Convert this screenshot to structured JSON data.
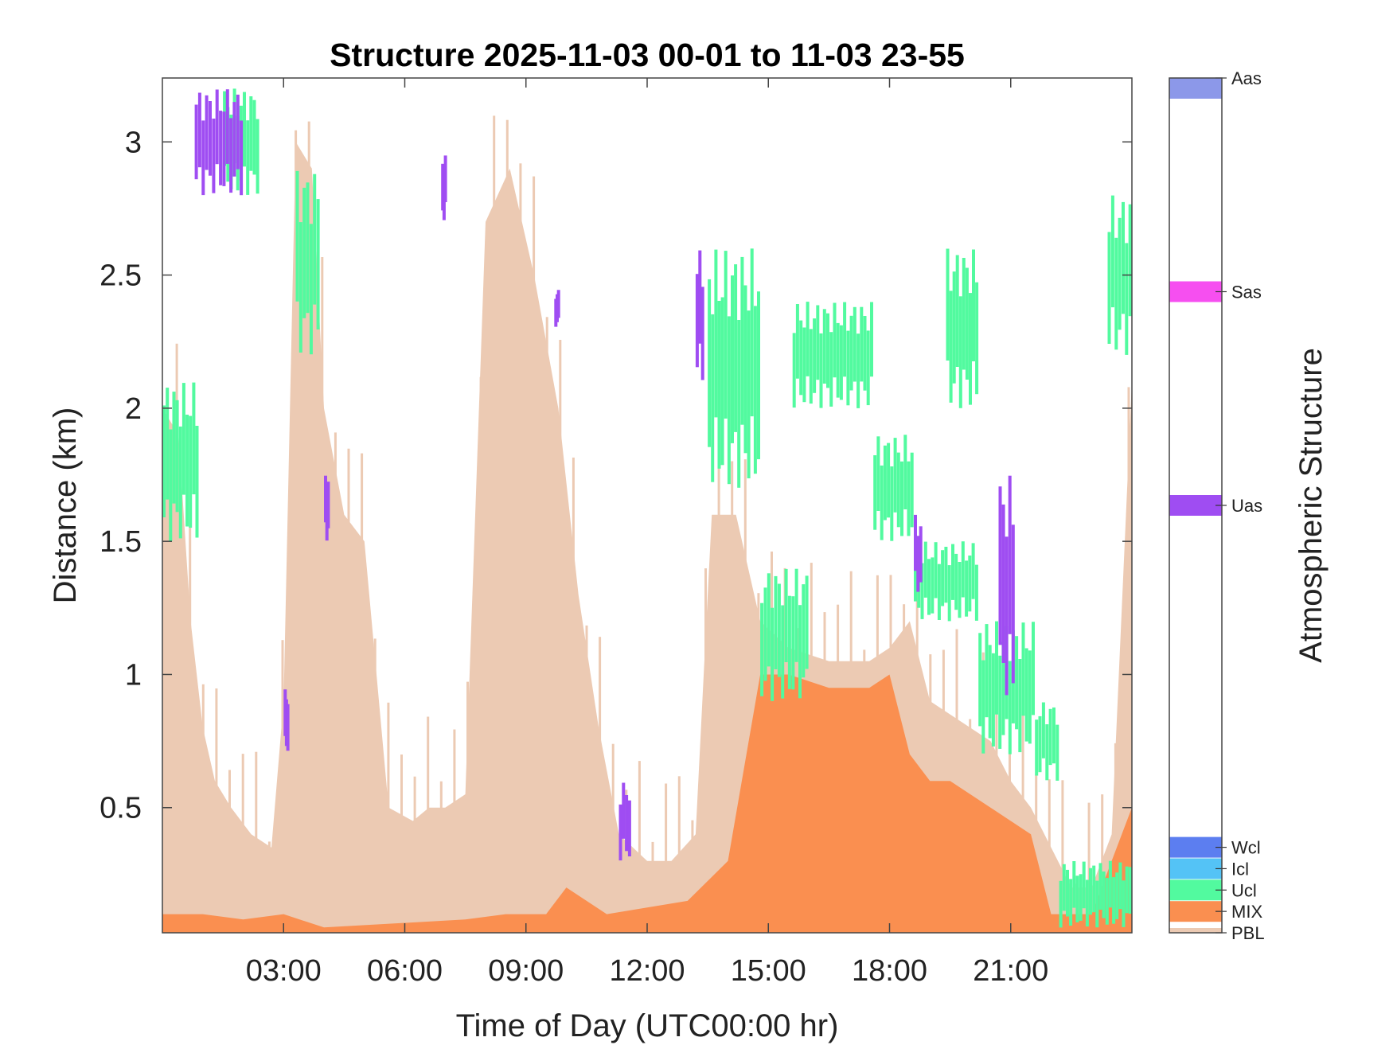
{
  "chart_data": {
    "type": "heatmap",
    "title": "Structure 2025-11-03 00-01 to 11-03 23-55",
    "xlabel": "Time of Day (UTC00:00 hr)",
    "ylabel": "Distance (km)",
    "xlim_hours": [
      0,
      24
    ],
    "ylim_km": [
      0.03,
      3.24
    ],
    "x_ticks": [
      {
        "hour": 3,
        "label": "03:00"
      },
      {
        "hour": 6,
        "label": "06:00"
      },
      {
        "hour": 9,
        "label": "09:00"
      },
      {
        "hour": 12,
        "label": "12:00"
      },
      {
        "hour": 15,
        "label": "15:00"
      },
      {
        "hour": 18,
        "label": "18:00"
      },
      {
        "hour": 21,
        "label": "21:00"
      }
    ],
    "y_ticks": [
      {
        "km": 0.5,
        "label": "0.5"
      },
      {
        "km": 1,
        "label": "1"
      },
      {
        "km": 1.5,
        "label": "1.5"
      },
      {
        "km": 2,
        "label": "2"
      },
      {
        "km": 2.5,
        "label": "2.5"
      },
      {
        "km": 3,
        "label": "3"
      }
    ],
    "colorbar": {
      "label": "Atmospheric Structure",
      "classes": [
        {
          "code": "PBL",
          "color": "#eccab3",
          "pos": 0.0
        },
        {
          "code": "MIX",
          "color": "#fa8f50",
          "pos": 0.025
        },
        {
          "code": "Ucl",
          "color": "#52fa9f",
          "pos": 0.05
        },
        {
          "code": "Icl",
          "color": "#54c3f6",
          "pos": 0.075
        },
        {
          "code": "Wcl",
          "color": "#5c7ef0",
          "pos": 0.1
        },
        {
          "code": "Uas",
          "color": "#9f4df2",
          "pos": 0.5
        },
        {
          "code": "Sas",
          "color": "#f64ff0",
          "pos": 0.75
        },
        {
          "code": "Aas",
          "color": "#8c98e9",
          "pos": 1.0
        }
      ]
    },
    "pbl_height_profile_km": [
      [
        0.0,
        2.0
      ],
      [
        0.4,
        1.9
      ],
      [
        0.7,
        1.2
      ],
      [
        1.0,
        0.8
      ],
      [
        1.3,
        0.6
      ],
      [
        1.7,
        0.5
      ],
      [
        2.2,
        0.4
      ],
      [
        2.7,
        0.35
      ],
      [
        3.0,
        0.9
      ],
      [
        3.3,
        3.0
      ],
      [
        3.7,
        2.9
      ],
      [
        4.0,
        2.0
      ],
      [
        4.5,
        1.6
      ],
      [
        5.0,
        1.5
      ],
      [
        5.6,
        0.5
      ],
      [
        6.2,
        0.45
      ],
      [
        6.6,
        0.5
      ],
      [
        7.0,
        0.5
      ],
      [
        7.5,
        0.55
      ],
      [
        8.0,
        2.7
      ],
      [
        8.6,
        2.9
      ],
      [
        9.2,
        2.5
      ],
      [
        9.8,
        2.0
      ],
      [
        10.3,
        1.3
      ],
      [
        10.8,
        0.8
      ],
      [
        11.3,
        0.4
      ],
      [
        12.0,
        0.3
      ],
      [
        12.6,
        0.3
      ],
      [
        13.2,
        0.4
      ],
      [
        13.6,
        1.6
      ],
      [
        14.2,
        1.6
      ],
      [
        14.8,
        1.2
      ],
      [
        15.5,
        1.1
      ],
      [
        16.5,
        1.05
      ],
      [
        17.5,
        1.05
      ],
      [
        18.0,
        1.1
      ],
      [
        18.5,
        1.2
      ],
      [
        19.0,
        0.9
      ],
      [
        19.5,
        0.85
      ],
      [
        20.0,
        0.8
      ],
      [
        20.5,
        0.75
      ],
      [
        21.0,
        0.6
      ],
      [
        21.5,
        0.5
      ],
      [
        22.0,
        0.35
      ],
      [
        22.5,
        0.2
      ],
      [
        23.0,
        0.2
      ],
      [
        23.5,
        0.4
      ],
      [
        24.0,
        2.1
      ]
    ],
    "mix_height_profile_km": [
      [
        0.0,
        0.1
      ],
      [
        1.0,
        0.1
      ],
      [
        2.0,
        0.08
      ],
      [
        3.0,
        0.1
      ],
      [
        4.0,
        0.05
      ],
      [
        7.5,
        0.08
      ],
      [
        8.5,
        0.1
      ],
      [
        9.5,
        0.1
      ],
      [
        10.0,
        0.2
      ],
      [
        10.5,
        0.15
      ],
      [
        11.0,
        0.1
      ],
      [
        13.0,
        0.15
      ],
      [
        14.0,
        0.3
      ],
      [
        14.8,
        1.0
      ],
      [
        15.5,
        1.0
      ],
      [
        16.5,
        0.95
      ],
      [
        17.5,
        0.95
      ],
      [
        18.0,
        1.0
      ],
      [
        18.5,
        0.7
      ],
      [
        19.0,
        0.6
      ],
      [
        19.5,
        0.6
      ],
      [
        20.5,
        0.5
      ],
      [
        21.0,
        0.45
      ],
      [
        21.5,
        0.4
      ],
      [
        22.0,
        0.1
      ],
      [
        23.0,
        0.1
      ],
      [
        23.5,
        0.3
      ],
      [
        24.0,
        0.5
      ]
    ],
    "ucl_segments": [
      {
        "x": [
          0.0,
          0.9
        ],
        "y": [
          1.5,
          2.1
        ]
      },
      {
        "x": [
          1.5,
          2.4
        ],
        "y": [
          2.8,
          3.2
        ]
      },
      {
        "x": [
          3.3,
          3.9
        ],
        "y": [
          2.2,
          2.9
        ]
      },
      {
        "x": [
          13.5,
          14.8
        ],
        "y": [
          1.7,
          2.6
        ]
      },
      {
        "x": [
          14.8,
          16.0
        ],
        "y": [
          0.9,
          1.4
        ]
      },
      {
        "x": [
          15.6,
          17.6
        ],
        "y": [
          2.0,
          2.4
        ]
      },
      {
        "x": [
          17.6,
          18.6
        ],
        "y": [
          1.5,
          1.9
        ]
      },
      {
        "x": [
          18.6,
          20.2
        ],
        "y": [
          1.2,
          1.5
        ]
      },
      {
        "x": [
          19.4,
          20.2
        ],
        "y": [
          2.0,
          2.6
        ]
      },
      {
        "x": [
          20.2,
          21.6
        ],
        "y": [
          0.7,
          1.2
        ]
      },
      {
        "x": [
          21.6,
          22.2
        ],
        "y": [
          0.6,
          0.9
        ]
      },
      {
        "x": [
          22.2,
          24.0
        ],
        "y": [
          0.05,
          0.3
        ]
      },
      {
        "x": [
          23.4,
          24.0
        ],
        "y": [
          2.2,
          2.8
        ]
      }
    ],
    "uas_segments": [
      {
        "x": [
          0.8,
          2.0
        ],
        "y": [
          2.8,
          3.2
        ]
      },
      {
        "x": [
          3.0,
          3.1
        ],
        "y": [
          0.7,
          0.95
        ]
      },
      {
        "x": [
          4.0,
          4.1
        ],
        "y": [
          1.5,
          1.75
        ]
      },
      {
        "x": [
          6.9,
          7.0
        ],
        "y": [
          2.7,
          2.95
        ]
      },
      {
        "x": [
          9.7,
          9.8
        ],
        "y": [
          2.3,
          2.45
        ]
      },
      {
        "x": [
          11.3,
          11.6
        ],
        "y": [
          0.3,
          0.6
        ]
      },
      {
        "x": [
          13.2,
          13.4
        ],
        "y": [
          2.1,
          2.6
        ]
      },
      {
        "x": [
          20.7,
          21.1
        ],
        "y": [
          0.9,
          1.75
        ]
      },
      {
        "x": [
          18.6,
          18.8
        ],
        "y": [
          1.3,
          1.6
        ]
      }
    ]
  }
}
